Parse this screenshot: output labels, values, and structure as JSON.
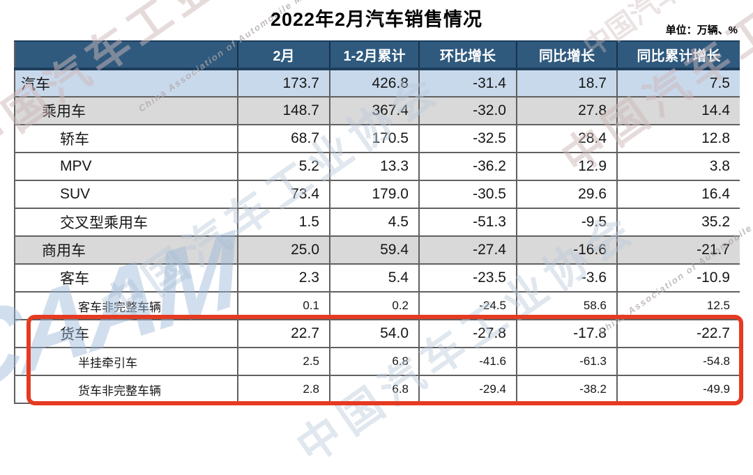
{
  "chart_data": {
    "type": "table",
    "title": "2022年2月汽车销售情况",
    "unit_label": "单位：万辆、%",
    "columns": [
      "",
      "2月",
      "1-2月累计",
      "环比增长",
      "同比增长",
      "同比累计增长"
    ],
    "rows": [
      {
        "label": "汽车",
        "indent": 0,
        "bg": "blue",
        "small": false,
        "highlighted": false,
        "values": [
          "173.7",
          "426.8",
          "-31.4",
          "18.7",
          "7.5"
        ]
      },
      {
        "label": "乘用车",
        "indent": 1,
        "bg": "gray",
        "small": false,
        "highlighted": false,
        "values": [
          "148.7",
          "367.4",
          "-32.0",
          "27.8",
          "14.4"
        ]
      },
      {
        "label": "轿车",
        "indent": 2,
        "bg": "white",
        "small": false,
        "highlighted": false,
        "values": [
          "68.7",
          "170.5",
          "-32.5",
          "28.4",
          "12.8"
        ]
      },
      {
        "label": "MPV",
        "indent": 2,
        "bg": "white",
        "small": false,
        "highlighted": false,
        "values": [
          "5.2",
          "13.3",
          "-36.2",
          "12.9",
          "3.8"
        ]
      },
      {
        "label": "SUV",
        "indent": 2,
        "bg": "white",
        "small": false,
        "highlighted": false,
        "values": [
          "73.4",
          "179.0",
          "-30.5",
          "29.6",
          "16.4"
        ]
      },
      {
        "label": "交叉型乘用车",
        "indent": 2,
        "bg": "white",
        "small": false,
        "highlighted": false,
        "values": [
          "1.5",
          "4.5",
          "-51.3",
          "-9.5",
          "35.2"
        ]
      },
      {
        "label": "商用车",
        "indent": 1,
        "bg": "gray",
        "small": false,
        "highlighted": false,
        "values": [
          "25.0",
          "59.4",
          "-27.4",
          "-16.6",
          "-21.7"
        ]
      },
      {
        "label": "客车",
        "indent": 2,
        "bg": "white",
        "small": false,
        "highlighted": false,
        "values": [
          "2.3",
          "5.4",
          "-23.5",
          "-3.6",
          "-10.9"
        ]
      },
      {
        "label": "客车非完整车辆",
        "indent": 3,
        "bg": "white",
        "small": true,
        "highlighted": false,
        "values": [
          "0.1",
          "0.2",
          "-24.5",
          "58.6",
          "12.5"
        ]
      },
      {
        "label": "货车",
        "indent": 2,
        "bg": "white",
        "small": false,
        "highlighted": true,
        "values": [
          "22.7",
          "54.0",
          "-27.8",
          "-17.8",
          "-22.7"
        ]
      },
      {
        "label": "半挂牵引车",
        "indent": 3,
        "bg": "white",
        "small": true,
        "highlighted": true,
        "values": [
          "2.5",
          "6.8",
          "-41.6",
          "-61.3",
          "-54.8"
        ]
      },
      {
        "label": "货车非完整车辆",
        "indent": 3,
        "bg": "white",
        "small": true,
        "highlighted": true,
        "values": [
          "2.8",
          "6.8",
          "-29.4",
          "-38.2",
          "-49.9"
        ]
      }
    ],
    "colors": {
      "header_bg": "#2f5a7e",
      "row_total_blue": "#c8d9ec",
      "row_subtotal_gray": "#d9d9d9",
      "highlight_border_red": "#e53a21"
    },
    "layout": {
      "grid": "on",
      "highlighted_rows": [
        "货车",
        "半挂牵引车",
        "货车非完整车辆"
      ]
    }
  },
  "watermark": {
    "text": "中国汽车工业协会",
    "subtext": "China Association of Automobile Manufacturers",
    "logo_text": "CAAM"
  }
}
